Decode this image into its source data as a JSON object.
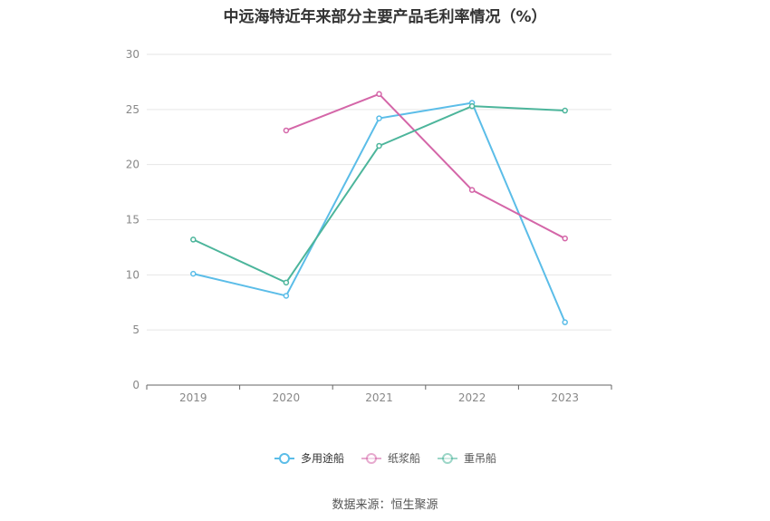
{
  "chart_data": {
    "type": "line",
    "title": "中远海特近年来部分主要产品毛利率情况（%）",
    "categories": [
      "2019",
      "2020",
      "2021",
      "2022",
      "2023"
    ],
    "series": [
      {
        "name": "多用途船",
        "color": "#5bbde8",
        "values": [
          10.1,
          8.1,
          24.2,
          25.6,
          5.7
        ]
      },
      {
        "name": "纸浆船",
        "color": "#d466a8",
        "values": [
          null,
          23.1,
          26.4,
          17.7,
          13.3
        ]
      },
      {
        "name": "重吊船",
        "color": "#4cb59b",
        "values": [
          13.2,
          9.3,
          21.7,
          25.3,
          24.9
        ]
      }
    ],
    "ylim": [
      0,
      30
    ],
    "yticks": [
      0,
      5,
      10,
      15,
      20,
      25,
      30
    ],
    "grid": true,
    "legend": "bottom"
  },
  "source": "数据来源：恒生聚源"
}
